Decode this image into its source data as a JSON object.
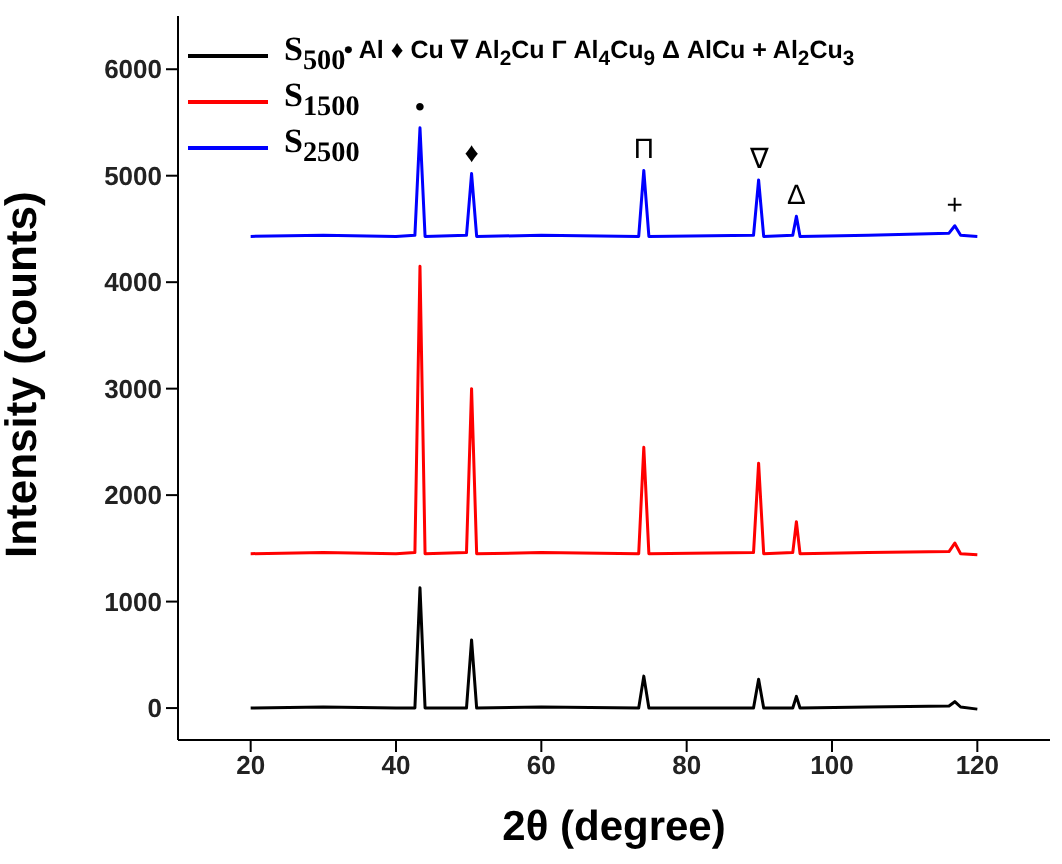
{
  "chart_data": {
    "type": "line",
    "xlabel": "2θ (degree)",
    "ylabel": "Intensity (counts)",
    "xlim": [
      10,
      130
    ],
    "ylim": [
      -300,
      6500
    ],
    "xticks": [
      20,
      40,
      60,
      80,
      100,
      120
    ],
    "yticks": [
      0,
      1000,
      2000,
      3000,
      4000,
      5000,
      6000
    ],
    "grid": false,
    "legend": "top left",
    "marker": "none",
    "line_style": "solid",
    "x": [
      20,
      30,
      40,
      42.6,
      43.3,
      44,
      49.7,
      50.4,
      51.1,
      60,
      73.4,
      74.1,
      74.8,
      89.2,
      89.9,
      90.6,
      94.6,
      95.1,
      95.6,
      105,
      116.1,
      116.9,
      117.7,
      120
    ],
    "series": [
      {
        "name": "S$_{500}$",
        "color": "#000000",
        "values": [
          0,
          10,
          0,
          0,
          1130,
          0,
          0,
          640,
          0,
          10,
          0,
          300,
          0,
          0,
          270,
          0,
          0,
          110,
          0,
          10,
          20,
          60,
          10,
          -10
        ]
      },
      {
        "name": "S$_{1500}$",
        "color": "#ff0000",
        "values": [
          1450,
          1460,
          1450,
          1460,
          4150,
          1450,
          1460,
          3000,
          1450,
          1460,
          1450,
          2450,
          1450,
          1460,
          2300,
          1450,
          1460,
          1750,
          1450,
          1460,
          1470,
          1550,
          1450,
          1440
        ]
      },
      {
        "name": "S$_{2500}$",
        "color": "#0000ff",
        "values": [
          4430,
          4440,
          4430,
          4440,
          5450,
          4430,
          4440,
          5020,
          4430,
          4440,
          4430,
          5050,
          4430,
          4440,
          4960,
          4430,
          4440,
          4620,
          4430,
          4440,
          4460,
          4530,
          4440,
          4430
        ]
      }
    ],
    "annotations": [
      "• Al ♦ Cu ∇ Al$_{2}$Cu Γ Al$_{4}$Cu$_{9}$ Δ AlCu + Al$_{2}$Cu$_{3}$",
      {
        "text": "•",
        "x": 43.3,
        "y": 5450
      },
      {
        "text": "♦",
        "x": 50.4,
        "y": 5020
      },
      {
        "text": "Π",
        "x": 74.1,
        "y": 5050
      },
      {
        "text": "∇",
        "x": 89.9,
        "y": 4960
      },
      {
        "text": "Δ",
        "x": 95.1,
        "y": 4620
      },
      {
        "text": "+",
        "x": 116.9,
        "y": 4530
      }
    ]
  }
}
